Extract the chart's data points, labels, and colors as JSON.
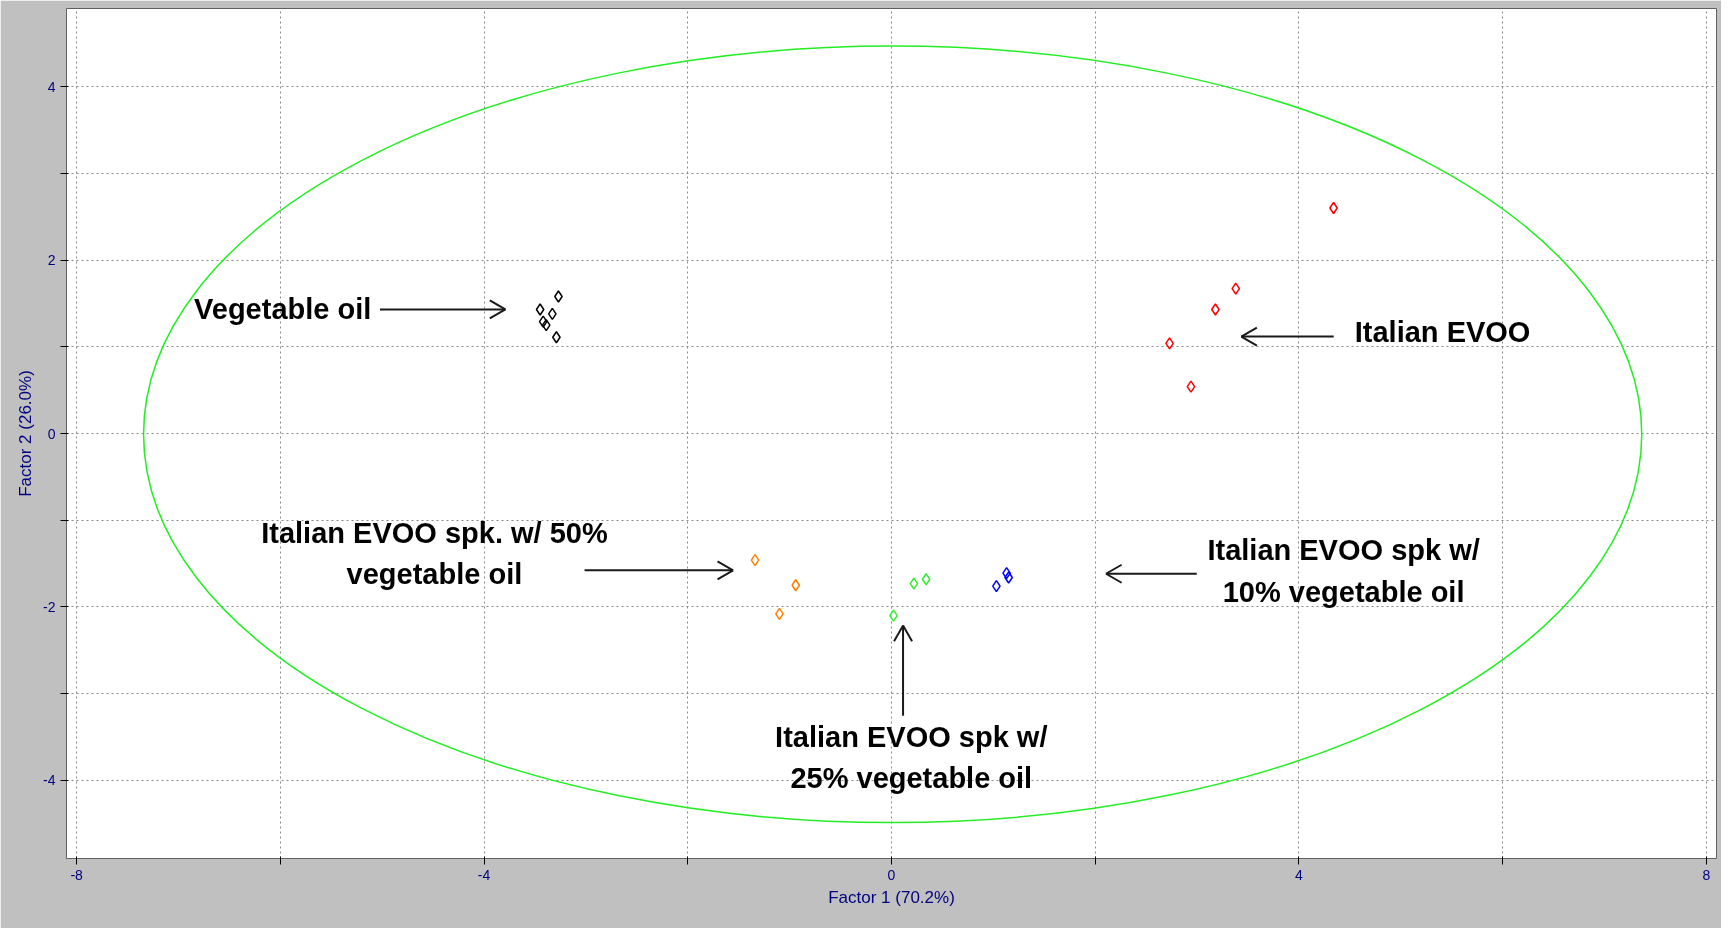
{
  "chart_data": {
    "type": "scatter",
    "xlabel": "Factor 1 (70.2%)",
    "ylabel": "Factor 2 (26.0%)",
    "xlim": [
      -8.1,
      8.1
    ],
    "ylim": [
      -4.9,
      4.9
    ],
    "xticks": [
      -8,
      {
        "value": -6,
        "label": null
      },
      -4,
      {
        "value": -2,
        "label": null
      },
      0,
      {
        "value": 2,
        "label": null
      },
      4,
      {
        "value": 6,
        "label": null
      },
      8
    ],
    "yticks": [
      -4,
      {
        "value": -3,
        "label": null
      },
      -2,
      {
        "value": -1,
        "label": null
      },
      0,
      {
        "value": 1,
        "label": null
      },
      2,
      {
        "value": 3,
        "label": null
      },
      4
    ],
    "grid": true,
    "marker": "diamond",
    "series": [
      {
        "color": "#000000",
        "x": [
          -3.27,
          -3.45,
          -3.33,
          -3.42,
          -3.39,
          -3.29
        ],
        "values": [
          1.58,
          1.43,
          1.38,
          1.29,
          1.25,
          1.11
        ]
      },
      {
        "color": "#ff0000",
        "x": [
          4.34,
          3.38,
          3.18,
          2.73,
          2.94
        ],
        "values": [
          2.6,
          1.67,
          1.43,
          1.04,
          0.54
        ]
      },
      {
        "color": "#ff8000",
        "x": [
          -1.34,
          -0.94,
          -1.1
        ],
        "values": [
          -1.46,
          -1.75,
          -2.08
        ]
      },
      {
        "color": "#33ee33",
        "x": [
          0.02,
          0.22,
          0.34
        ],
        "values": [
          -2.1,
          -1.73,
          -1.68
        ]
      },
      {
        "color": "#0000ff",
        "x": [
          1.03,
          1.13,
          1.15
        ],
        "values": [
          -1.76,
          -1.61,
          -1.66
        ]
      }
    ],
    "annotations": [
      "Vegetable oil",
      "Italian EVOO",
      "Italian EVOO spk. w/ 50%\nvegetable oil",
      "Italian EVOO spk w/\n10% vegetable oil",
      "Italian EVOO spk w/\n25% vegetable oil"
    ]
  }
}
